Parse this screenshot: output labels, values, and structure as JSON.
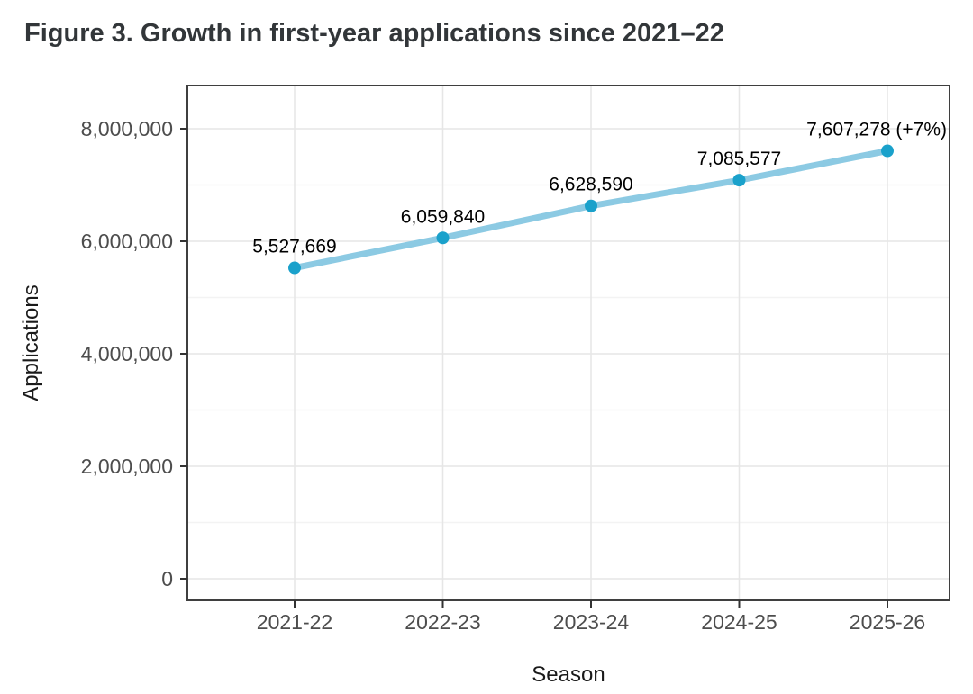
{
  "figure": {
    "title": "Figure 3. Growth in first-year applications since 2021–22"
  },
  "chart_data": {
    "type": "line",
    "title": "Figure 3. Growth in first-year applications since 2021–22",
    "categories": [
      "2021-22",
      "2022-23",
      "2023-24",
      "2024-25",
      "2025-26"
    ],
    "series": [
      {
        "name": "Applications",
        "values": [
          5527669,
          6059840,
          6628590,
          7085577,
          7607278
        ]
      }
    ],
    "point_labels": [
      "5,527,669",
      "6,059,840",
      "6,628,590",
      "7,085,577",
      "7,607,278 (+7%)"
    ],
    "xlabel": "Season",
    "ylabel": "Applications",
    "ylim": [
      0,
      8000000
    ],
    "yticks": [
      0,
      2000000,
      4000000,
      6000000,
      8000000
    ],
    "ytick_labels": [
      "0",
      "2,000,000",
      "4,000,000",
      "6,000,000",
      "8,000,000"
    ],
    "grid": "major-and-minor",
    "legend_position": "none",
    "colors": {
      "line": "#8CCAE3",
      "point": "#1AA1CB",
      "grid_major": "#e6e6e6",
      "grid_minor": "#f3f3f3",
      "panel_border": "#3f3f3f",
      "tick_mark": "#333333",
      "tick_label": "#4d4d4d",
      "axis_title": "#1a1a1a",
      "point_label": "#000000",
      "title": "#323639"
    }
  }
}
